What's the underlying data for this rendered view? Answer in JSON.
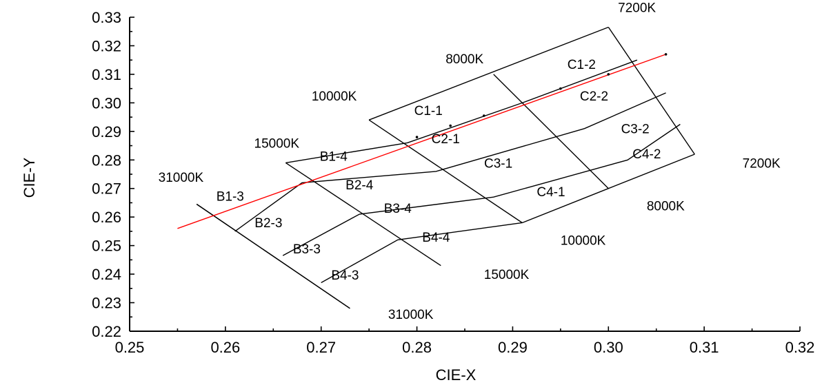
{
  "chart_data": {
    "type": "scatter",
    "xlabel": "CIE-X",
    "ylabel": "CIE-Y",
    "xlim": [
      0.25,
      0.32
    ],
    "ylim": [
      0.22,
      0.33
    ],
    "x_ticks": [
      "0.25",
      "0.26",
      "0.27",
      "0.28",
      "0.29",
      "0.30",
      "0.31",
      "0.32"
    ],
    "y_ticks": [
      "0.22",
      "0.23",
      "0.24",
      "0.25",
      "0.26",
      "0.27",
      "0.28",
      "0.29",
      "0.30",
      "0.31",
      "0.32",
      "0.33"
    ],
    "isotherm_lines": [
      {
        "cct": "31000K",
        "points": [
          [
            0.257,
            0.2645
          ],
          [
            0.273,
            0.228
          ]
        ]
      },
      {
        "cct": "15000K",
        "points": [
          [
            0.2663,
            0.279
          ],
          [
            0.2825,
            0.243
          ]
        ]
      },
      {
        "cct": "10000K",
        "points": [
          [
            0.275,
            0.294
          ],
          [
            0.291,
            0.258
          ]
        ]
      },
      {
        "cct": "8000K",
        "points": [
          [
            0.288,
            0.31
          ],
          [
            0.3,
            0.27
          ]
        ]
      },
      {
        "cct": "7200K",
        "points": [
          [
            0.3,
            0.3265
          ],
          [
            0.309,
            0.282
          ]
        ]
      }
    ],
    "bin_boundaries": [
      {
        "points": [
          [
            0.275,
            0.294
          ],
          [
            0.3,
            0.3265
          ]
        ]
      },
      {
        "points": [
          [
            0.2663,
            0.279
          ],
          [
            0.279,
            0.286
          ],
          [
            0.291,
            0.3
          ],
          [
            0.303,
            0.315
          ]
        ]
      },
      {
        "points": [
          [
            0.261,
            0.255
          ],
          [
            0.268,
            0.272
          ],
          [
            0.282,
            0.276
          ],
          [
            0.2975,
            0.291
          ],
          [
            0.306,
            0.3035
          ]
        ]
      },
      {
        "points": [
          [
            0.266,
            0.2465
          ],
          [
            0.274,
            0.261
          ],
          [
            0.288,
            0.267
          ],
          [
            0.302,
            0.28
          ],
          [
            0.3075,
            0.2925
          ]
        ]
      },
      {
        "points": [
          [
            0.27,
            0.237
          ],
          [
            0.278,
            0.252
          ],
          [
            0.291,
            0.258
          ],
          [
            0.3,
            0.27
          ],
          [
            0.309,
            0.282
          ]
        ]
      },
      {
        "points": [
          [
            0.257,
            0.2645
          ],
          [
            0.273,
            0.228
          ]
        ]
      }
    ],
    "center_line": {
      "color": "#ff0000",
      "points": [
        [
          0.255,
          0.256
        ],
        [
          0.306,
          0.317
        ]
      ]
    },
    "markers": [
      [
        0.28,
        0.288
      ],
      [
        0.2835,
        0.292
      ],
      [
        0.287,
        0.2955
      ],
      [
        0.295,
        0.305
      ],
      [
        0.3,
        0.31
      ],
      [
        0.306,
        0.317
      ]
    ],
    "cct_labels": [
      {
        "text": "7200K",
        "x": 0.301,
        "y": 0.3335
      },
      {
        "text": "8000K",
        "x": 0.283,
        "y": 0.3155
      },
      {
        "text": "10000K",
        "x": 0.269,
        "y": 0.3025
      },
      {
        "text": "15000K",
        "x": 0.263,
        "y": 0.286
      },
      {
        "text": "31000K",
        "x": 0.253,
        "y": 0.274
      },
      {
        "text": "7200K",
        "x": 0.314,
        "y": 0.279
      },
      {
        "text": "8000K",
        "x": 0.304,
        "y": 0.264
      },
      {
        "text": "10000K",
        "x": 0.295,
        "y": 0.252
      },
      {
        "text": "15000K",
        "x": 0.287,
        "y": 0.24
      },
      {
        "text": "31000K",
        "x": 0.277,
        "y": 0.226
      }
    ],
    "bin_labels": [
      {
        "text": "C1-2",
        "x": 0.2972,
        "y": 0.3136
      },
      {
        "text": "C2-2",
        "x": 0.2985,
        "y": 0.3025
      },
      {
        "text": "C1-1",
        "x": 0.2812,
        "y": 0.2974
      },
      {
        "text": "C3-2",
        "x": 0.3028,
        "y": 0.2911
      },
      {
        "text": "C2-1",
        "x": 0.283,
        "y": 0.2876
      },
      {
        "text": "C4-2",
        "x": 0.304,
        "y": 0.2822
      },
      {
        "text": "B1-4",
        "x": 0.2713,
        "y": 0.2814
      },
      {
        "text": "C3-1",
        "x": 0.2885,
        "y": 0.279
      },
      {
        "text": "B2-4",
        "x": 0.274,
        "y": 0.2714
      },
      {
        "text": "C4-1",
        "x": 0.294,
        "y": 0.269
      },
      {
        "text": "B1-3",
        "x": 0.2605,
        "y": 0.2674
      },
      {
        "text": "B3-4",
        "x": 0.278,
        "y": 0.2632
      },
      {
        "text": "B2-3",
        "x": 0.2645,
        "y": 0.2581
      },
      {
        "text": "B4-4",
        "x": 0.282,
        "y": 0.2531
      },
      {
        "text": "B3-3",
        "x": 0.2685,
        "y": 0.2489
      },
      {
        "text": "B4-3",
        "x": 0.2725,
        "y": 0.2398
      }
    ]
  }
}
